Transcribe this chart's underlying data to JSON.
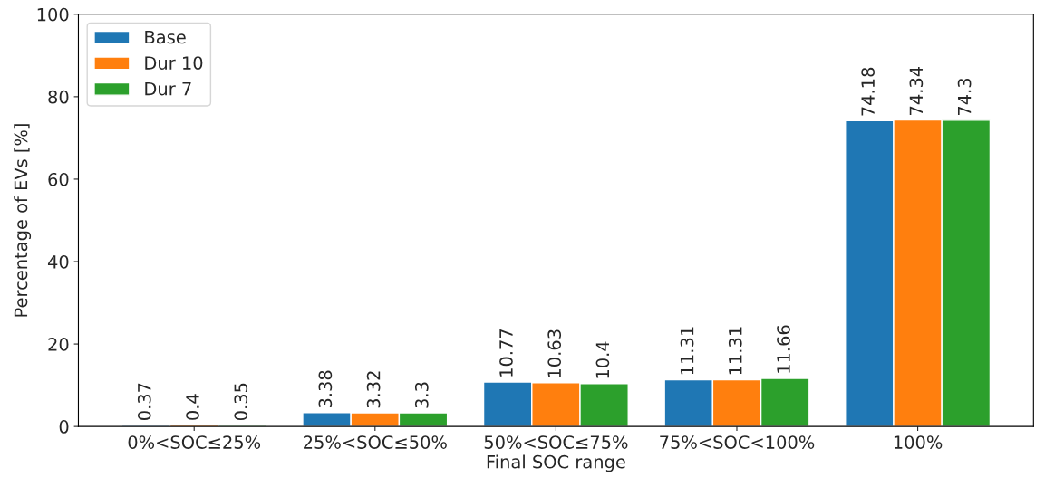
{
  "chart_data": {
    "type": "bar",
    "xlabel": "Final SOC range",
    "ylabel": "Percentage of EVs [%]",
    "categories": [
      "0%<SOC≤25%",
      "25%<SOC≤50%",
      "50%<SOC≤75%",
      "75%<SOC<100%",
      "100%"
    ],
    "series": [
      {
        "name": "Base",
        "color": "#1f77b4",
        "values": [
          0.37,
          3.38,
          10.77,
          11.31,
          74.18
        ]
      },
      {
        "name": "Dur 10",
        "color": "#ff7f0e",
        "values": [
          0.4,
          3.32,
          10.63,
          11.31,
          74.34
        ]
      },
      {
        "name": "Dur 7",
        "color": "#2ca02c",
        "values": [
          0.35,
          3.3,
          10.4,
          11.66,
          74.3
        ]
      }
    ],
    "ylim": [
      0,
      100
    ],
    "yticks": [
      0,
      20,
      40,
      60,
      80,
      100
    ],
    "data_labels": true,
    "legend": "top left",
    "grid": false
  }
}
